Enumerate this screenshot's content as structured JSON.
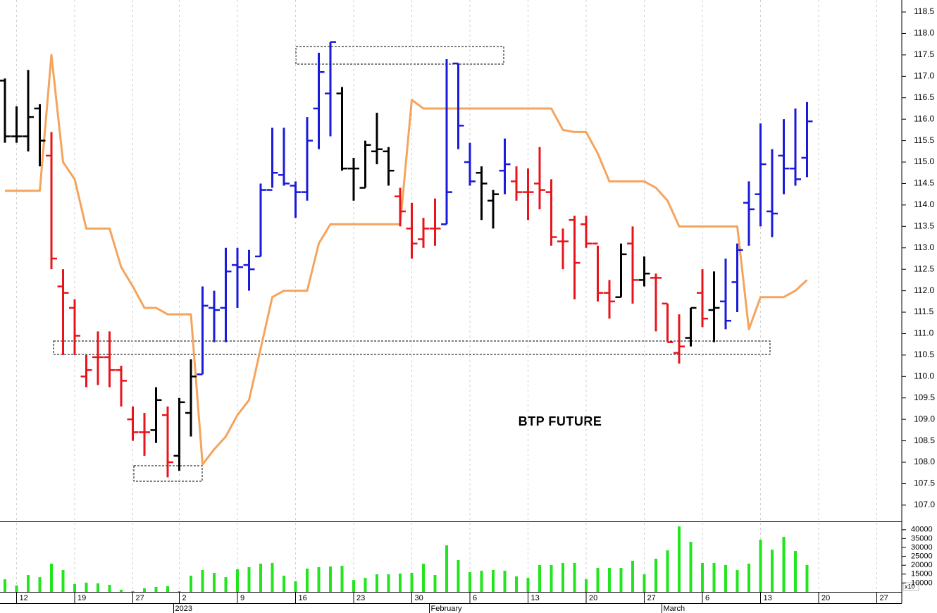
{
  "chart_data": {
    "type": "ohlc",
    "annotation": "BTP FUTURE",
    "categories": [
      null,
      "12",
      null,
      null,
      null,
      null,
      "19",
      null,
      null,
      null,
      null,
      "27",
      null,
      null,
      null,
      "2",
      null,
      null,
      null,
      null,
      "9",
      null,
      null,
      null,
      null,
      "16",
      null,
      null,
      null,
      null,
      "23",
      null,
      null,
      null,
      null,
      "30",
      null,
      null,
      null,
      null,
      "6",
      null,
      null,
      null,
      null,
      "13",
      null,
      null,
      null,
      null,
      "20",
      null,
      null,
      null,
      null,
      "27",
      null,
      null,
      null,
      null,
      "6",
      null,
      null,
      null,
      null,
      "13",
      null,
      null,
      null,
      null,
      "20",
      null,
      null,
      null,
      null,
      "27"
    ],
    "months": [
      null,
      null,
      null,
      null,
      null,
      null,
      null,
      null,
      null,
      null,
      null,
      null,
      null,
      null,
      null,
      "2023",
      null,
      null,
      null,
      null,
      null,
      null,
      null,
      null,
      null,
      null,
      null,
      null,
      null,
      null,
      null,
      null,
      null,
      null,
      null,
      null,
      null,
      "February",
      null,
      null,
      null,
      null,
      null,
      null,
      null,
      null,
      null,
      null,
      null,
      null,
      null,
      null,
      null,
      null,
      null,
      null,
      null,
      "March",
      null,
      null,
      null,
      null,
      null,
      null,
      null,
      null,
      null,
      null,
      null,
      null,
      null,
      null,
      null,
      null
    ],
    "open": [
      116.9,
      115.6,
      115.6,
      116.25,
      115.15,
      112.1,
      111.6,
      110.0,
      110.45,
      110.45,
      110.15,
      109.0,
      108.7,
      108.75,
      109.1,
      108.15,
      109.15,
      110.05,
      111.6,
      111.6,
      112.6,
      112.6,
      112.8,
      114.35,
      114.7,
      114.45,
      114.3,
      116.25,
      116.6,
      116.6,
      114.85,
      114.4,
      115.25,
      115.25,
      114.2,
      113.45,
      113.2,
      113.45,
      113.55,
      117.3,
      115.0,
      114.75,
      114.1,
      114.8,
      114.55,
      114.3,
      114.5,
      114.3,
      113.15,
      113.65,
      113.55,
      113.1,
      111.95,
      111.85,
      113.1,
      112.25,
      112.3,
      111.7,
      110.55,
      110.9,
      111.95,
      111.55,
      111.75,
      112.2,
      114.05,
      114.25,
      113.85,
      115.15,
      114.85,
      115.1,
      null,
      null,
      null,
      null,
      null,
      null
    ],
    "high": [
      116.95,
      116.3,
      117.15,
      116.35,
      115.7,
      112.5,
      111.8,
      110.5,
      111.05,
      111.05,
      110.25,
      109.3,
      109.15,
      109.75,
      109.3,
      109.5,
      110.4,
      112.1,
      112.0,
      113.0,
      113.0,
      112.95,
      114.5,
      115.8,
      115.8,
      114.55,
      116.05,
      117.55,
      117.8,
      116.75,
      115.1,
      115.5,
      116.15,
      115.35,
      114.4,
      114.05,
      113.7,
      114.15,
      117.4,
      117.3,
      115.45,
      114.9,
      114.35,
      115.55,
      114.9,
      114.85,
      115.35,
      114.6,
      113.45,
      113.75,
      113.75,
      113.05,
      112.25,
      113.1,
      113.5,
      112.8,
      112.4,
      111.7,
      111.45,
      111.6,
      112.5,
      112.45,
      112.75,
      113.1,
      114.55,
      115.9,
      115.3,
      116.0,
      116.25,
      116.4,
      null,
      null,
      null,
      null,
      null,
      null
    ],
    "low": [
      115.45,
      115.45,
      115.25,
      114.9,
      112.5,
      110.5,
      110.5,
      109.75,
      109.8,
      109.75,
      109.3,
      108.5,
      108.15,
      108.45,
      107.65,
      107.8,
      108.6,
      110.05,
      110.8,
      110.8,
      111.6,
      112.0,
      112.8,
      114.4,
      114.45,
      113.7,
      114.1,
      115.3,
      115.6,
      114.8,
      114.1,
      114.4,
      114.95,
      114.45,
      113.5,
      112.75,
      113.0,
      113.05,
      113.55,
      115.3,
      114.45,
      113.65,
      113.45,
      114.25,
      114.1,
      113.65,
      113.9,
      113.05,
      112.5,
      111.8,
      113.0,
      111.75,
      111.35,
      111.85,
      111.7,
      112.1,
      111.05,
      110.8,
      110.3,
      110.7,
      111.15,
      110.8,
      111.1,
      111.5,
      113.05,
      113.5,
      113.25,
      114.25,
      114.45,
      114.65,
      null,
      null,
      null,
      null,
      null,
      null
    ],
    "close": [
      115.6,
      115.6,
      116.05,
      115.5,
      112.75,
      111.95,
      110.95,
      110.15,
      110.45,
      110.15,
      109.9,
      108.7,
      108.7,
      109.45,
      108.0,
      109.4,
      110.0,
      111.65,
      111.55,
      112.45,
      112.55,
      112.5,
      114.35,
      114.75,
      114.5,
      114.3,
      115.5,
      117.1,
      117.8,
      114.85,
      114.85,
      115.4,
      115.3,
      114.8,
      113.85,
      113.1,
      113.45,
      113.45,
      114.3,
      115.85,
      114.55,
      114.5,
      114.25,
      114.95,
      114.3,
      114.3,
      114.35,
      113.25,
      113.15,
      112.65,
      113.1,
      111.95,
      111.75,
      112.85,
      112.25,
      112.4,
      112.3,
      110.8,
      110.7,
      111.6,
      111.35,
      111.6,
      111.3,
      112.95,
      113.9,
      114.95,
      113.8,
      114.85,
      114.6,
      115.95,
      null,
      null,
      null,
      null,
      null,
      null
    ],
    "colors": [
      "#000000",
      "#000000",
      "#000000",
      "#000000",
      "#e8141b",
      "#e8141b",
      "#e8141b",
      "#e8141b",
      "#e8141b",
      "#e8141b",
      "#e8141b",
      "#e8141b",
      "#e8141b",
      "#000000",
      "#e8141b",
      "#000000",
      "#000000",
      "#1a1adb",
      "#1a1adb",
      "#1a1adb",
      "#1a1adb",
      "#1a1adb",
      "#1a1adb",
      "#1a1adb",
      "#1a1adb",
      "#1a1adb",
      "#1a1adb",
      "#1a1adb",
      "#1a1adb",
      "#000000",
      "#000000",
      "#000000",
      "#000000",
      "#000000",
      "#e8141b",
      "#e8141b",
      "#e8141b",
      "#e8141b",
      "#1a1adb",
      "#1a1adb",
      "#1a1adb",
      "#000000",
      "#000000",
      "#1a1adb",
      "#e8141b",
      "#e8141b",
      "#e8141b",
      "#e8141b",
      "#e8141b",
      "#e8141b",
      "#e8141b",
      "#e8141b",
      "#e8141b",
      "#000000",
      "#e8141b",
      "#000000",
      "#e8141b",
      "#e8141b",
      "#e8141b",
      "#000000",
      "#e8141b",
      "#000000",
      "#1a1adb",
      "#1a1adb",
      "#1a1adb",
      "#1a1adb",
      "#1a1adb",
      "#1a1adb",
      "#1a1adb",
      "#1a1adb",
      null,
      null,
      null,
      null,
      null,
      null
    ],
    "indicator": {
      "color": "#f5a45d",
      "values": [
        114.33,
        114.33,
        114.33,
        114.33,
        117.5,
        115.0,
        114.6,
        113.45,
        113.45,
        113.45,
        112.55,
        112.1,
        111.6,
        111.6,
        111.45,
        111.45,
        111.45,
        107.95,
        108.3,
        108.6,
        109.1,
        109.45,
        110.65,
        111.85,
        112.0,
        112.0,
        112.0,
        113.1,
        113.55,
        113.55,
        113.55,
        113.55,
        113.55,
        113.55,
        113.55,
        116.45,
        116.25,
        116.25,
        116.25,
        116.25,
        116.25,
        116.25,
        116.25,
        116.25,
        116.25,
        116.25,
        116.25,
        116.25,
        115.75,
        115.7,
        115.7,
        115.2,
        114.55,
        114.55,
        114.55,
        114.55,
        114.4,
        114.1,
        113.5,
        113.5,
        113.5,
        113.5,
        113.5,
        113.5,
        111.1,
        111.85,
        111.85,
        111.85,
        112.0,
        112.25,
        null,
        null,
        null,
        null,
        null,
        null
      ]
    },
    "ylim": [
      106.62,
      118.78
    ],
    "yticks": [
      {
        "value": 107,
        "label": "107.0"
      },
      107.5,
      {
        "value": 108,
        "label": "108.0"
      },
      108.5,
      {
        "value": 109,
        "label": "109.0"
      },
      109.5,
      {
        "value": 110,
        "label": "110.0"
      },
      110.5,
      {
        "value": 111,
        "label": "111.0"
      },
      111.5,
      {
        "value": 112,
        "label": "112.0"
      },
      112.5,
      {
        "value": 113,
        "label": "113.0"
      },
      113.5,
      {
        "value": 114,
        "label": "114.0"
      },
      114.5,
      {
        "value": 115,
        "label": "115.0"
      },
      115.5,
      {
        "value": 116,
        "label": "116.0"
      },
      116.5,
      {
        "value": 117,
        "label": "117.0"
      },
      117.5,
      {
        "value": 118,
        "label": "118.0"
      },
      118.5
    ],
    "grid": true,
    "volume": {
      "color": "#22e51e",
      "unit_label": "x10",
      "values": [
        12100,
        8600,
        14500,
        13300,
        20900,
        17300,
        9400,
        10200,
        9800,
        9000,
        6200,
        5500,
        7000,
        7800,
        8200,
        5400,
        14100,
        17300,
        15700,
        13300,
        17700,
        18900,
        20900,
        21300,
        14100,
        11000,
        18100,
        18900,
        19300,
        19700,
        11700,
        12900,
        14900,
        14900,
        15300,
        15700,
        20900,
        14500,
        31200,
        22900,
        16100,
        16900,
        17300,
        16900,
        13700,
        12900,
        20100,
        20100,
        21300,
        21300,
        12100,
        18500,
        18500,
        18500,
        22500,
        14900,
        23700,
        28400,
        41900,
        33200,
        21300,
        21300,
        20100,
        17300,
        20900,
        34400,
        28800,
        36000,
        28000,
        20100,
        null,
        null,
        null,
        null,
        null,
        null
      ],
      "ylim": [
        5000,
        44300
      ],
      "yticks": [
        10000,
        15000,
        20000,
        25000,
        30000,
        35000,
        40000
      ]
    }
  }
}
